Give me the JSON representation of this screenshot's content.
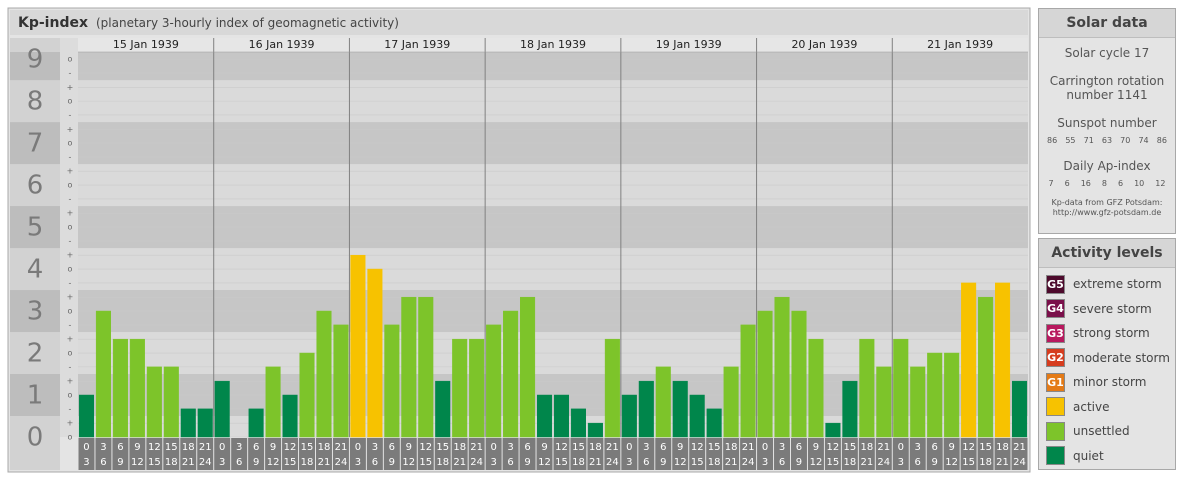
{
  "chart_data": {
    "type": "bar",
    "title": "Kp-index",
    "subtitle": "(planetary 3-hourly index of geomagnetic activity)",
    "days": [
      "15 Jan 1939",
      "16 Jan 1939",
      "17 Jan 1939",
      "18 Jan 1939",
      "19 Jan 1939",
      "20 Jan 1939",
      "21 Jan 1939"
    ],
    "hour_labels": [
      [
        "0",
        "3"
      ],
      [
        "3",
        "6"
      ],
      [
        "6",
        "9"
      ],
      [
        "9",
        "12"
      ],
      [
        "12",
        "15"
      ],
      [
        "15",
        "18"
      ],
      [
        "18",
        "21"
      ],
      [
        "21",
        "24"
      ]
    ],
    "values": [
      1,
      3,
      2.33,
      2.33,
      1.67,
      1.67,
      0.67,
      0.67,
      1.33,
      0,
      0.67,
      1.67,
      1,
      2,
      3,
      2.67,
      4.33,
      4,
      2.67,
      3.33,
      3.33,
      1.33,
      2.33,
      2.33,
      2.67,
      3,
      3.33,
      1,
      1,
      0.67,
      0.33,
      2.33,
      1,
      1.33,
      1.67,
      1.33,
      1,
      0.67,
      1.67,
      2.67,
      3,
      3.33,
      3,
      2.33,
      0.33,
      1.33,
      2.33,
      1.67,
      2.33,
      1.67,
      2,
      2,
      3.67,
      3.33,
      3.67,
      1.33
    ],
    "colors": [
      "#00864b",
      "#7dc42a",
      "#7dc42a",
      "#7dc42a",
      "#7dc42a",
      "#7dc42a",
      "#00864b",
      "#00864b",
      "#00864b",
      "#00864b",
      "#00864b",
      "#7dc42a",
      "#00864b",
      "#7dc42a",
      "#7dc42a",
      "#7dc42a",
      "#f7c200",
      "#f7c200",
      "#7dc42a",
      "#7dc42a",
      "#7dc42a",
      "#00864b",
      "#7dc42a",
      "#7dc42a",
      "#7dc42a",
      "#7dc42a",
      "#7dc42a",
      "#00864b",
      "#00864b",
      "#00864b",
      "#00864b",
      "#7dc42a",
      "#00864b",
      "#00864b",
      "#7dc42a",
      "#00864b",
      "#00864b",
      "#00864b",
      "#7dc42a",
      "#7dc42a",
      "#7dc42a",
      "#7dc42a",
      "#7dc42a",
      "#7dc42a",
      "#00864b",
      "#00864b",
      "#7dc42a",
      "#7dc42a",
      "#7dc42a",
      "#7dc42a",
      "#7dc42a",
      "#7dc42a",
      "#f7c200",
      "#7dc42a",
      "#f7c200",
      "#00864b"
    ],
    "ylim": [
      0,
      9.17
    ],
    "major_ticks": [
      0,
      1,
      2,
      3,
      4,
      5,
      6,
      7,
      8,
      9
    ],
    "yticks": [
      {
        "value": 0,
        "label": "o"
      },
      {
        "value": 0.33,
        "label": "+"
      },
      {
        "value": 0.67,
        "label": "-"
      },
      {
        "value": 1,
        "label": "o"
      },
      {
        "value": 1.33,
        "label": "+"
      },
      {
        "value": 1.67,
        "label": "-"
      },
      {
        "value": 2,
        "label": "o"
      },
      {
        "value": 2.33,
        "label": "+"
      },
      {
        "value": 2.67,
        "label": "-"
      },
      {
        "value": 3,
        "label": "o"
      },
      {
        "value": 3.33,
        "label": "+"
      },
      {
        "value": 3.67,
        "label": "-"
      },
      {
        "value": 4,
        "label": "o"
      },
      {
        "value": 4.33,
        "label": "+"
      },
      {
        "value": 4.67,
        "label": "-"
      },
      {
        "value": 5,
        "label": "o"
      },
      {
        "value": 5.33,
        "label": "+"
      },
      {
        "value": 5.67,
        "label": "-"
      },
      {
        "value": 6,
        "label": "o"
      },
      {
        "value": 6.33,
        "label": "+"
      },
      {
        "value": 6.67,
        "label": "-"
      },
      {
        "value": 7,
        "label": "o"
      },
      {
        "value": 7.33,
        "label": "+"
      },
      {
        "value": 7.67,
        "label": "-"
      },
      {
        "value": 8,
        "label": "o"
      },
      {
        "value": 8.33,
        "label": "+"
      },
      {
        "value": 8.67,
        "label": "-"
      },
      {
        "value": 9,
        "label": "o"
      }
    ],
    "grid": true
  },
  "solar_data": {
    "title": "Solar data",
    "cycle": "Solar cycle 17",
    "carrington": "Carrington rotation number 1141",
    "sunspot_label": "Sunspot number",
    "sunspot_numbers": [
      86,
      55,
      71,
      63,
      70,
      74,
      86
    ],
    "ap_label": "Daily Ap-index",
    "ap_values": [
      7,
      6,
      16,
      8,
      6,
      10,
      12
    ],
    "source": "Kp-data from GFZ Potsdam:",
    "source_url": "http://www.gfz-potsdam.de"
  },
  "activity_levels": {
    "title": "Activity levels",
    "items": [
      {
        "code": "G5",
        "label": "extreme storm",
        "color": "#4d0a2c"
      },
      {
        "code": "G4",
        "label": "severe storm",
        "color": "#7a0f4a"
      },
      {
        "code": "G3",
        "label": "strong storm",
        "color": "#b8185e"
      },
      {
        "code": "G2",
        "label": "moderate storm",
        "color": "#d63c1e"
      },
      {
        "code": "G1",
        "label": "minor storm",
        "color": "#e47a16"
      },
      {
        "label": "active",
        "color": "#f7c200"
      },
      {
        "label": "unsettled",
        "color": "#7dc42a"
      },
      {
        "label": "quiet",
        "color": "#00864b"
      }
    ]
  }
}
